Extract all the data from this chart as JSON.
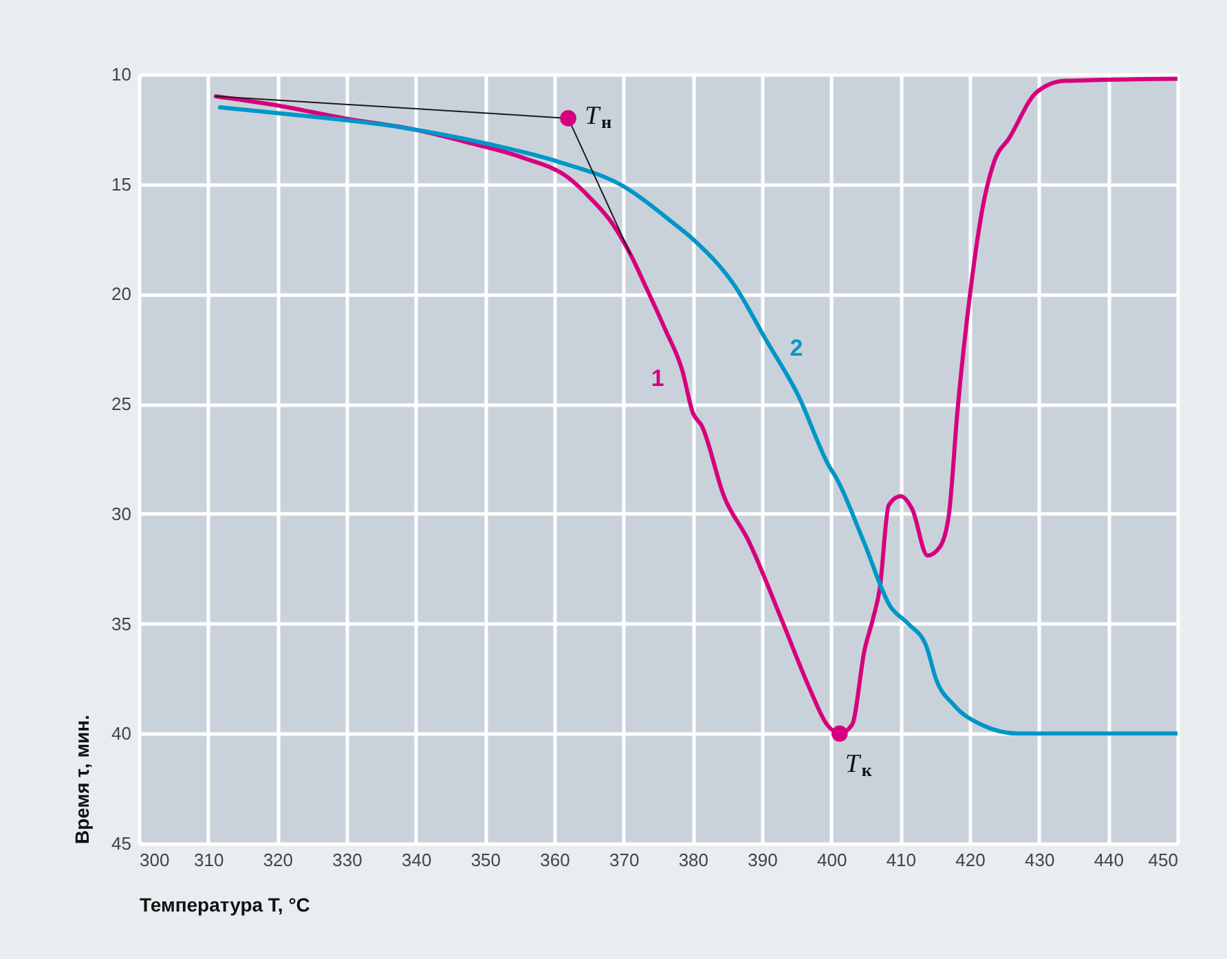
{
  "chart_data": {
    "type": "line",
    "xlabel": "Температура T, °C",
    "ylabel": "Время τ, мин.",
    "xlim": [
      300,
      450
    ],
    "xticks": [
      300,
      310,
      320,
      330,
      340,
      350,
      360,
      370,
      380,
      390,
      400,
      410,
      420,
      430,
      440,
      450
    ],
    "ylim": [
      45,
      10
    ],
    "yticks": [
      10,
      15,
      20,
      25,
      30,
      35,
      40,
      45
    ],
    "grid": true,
    "line_style": "solid",
    "series": [
      {
        "name": "1",
        "color": "#d6007e",
        "x": [
          311.1,
          319.7,
          329.6,
          339.6,
          347.5,
          355.5,
          362,
          365.4,
          368.4,
          371,
          373.4,
          376,
          378.5,
          380,
          381.3,
          384.5,
          388,
          392.8,
          396.8,
          399.4,
          401.2,
          403,
          404.8,
          406,
          407,
          408.3,
          410,
          411.7,
          413.9,
          415.7,
          417,
          418.2,
          420.2,
          421.9,
          423.5,
          425.7,
          429.7,
          433.7,
          450
        ],
        "values": [
          11.0,
          11.4,
          12.0,
          12.5,
          13.1,
          13.8,
          14.7,
          15.7,
          16.8,
          18.2,
          19.8,
          21.6,
          23.5,
          25.4,
          26,
          29.2,
          31.2,
          34.8,
          37.9,
          39.6,
          40.0,
          39.6,
          36.2,
          34.8,
          33.4,
          29.6,
          29.2,
          29.8,
          31.9,
          31.5,
          30,
          25.4,
          19.6,
          16,
          14,
          12.9,
          10.8,
          10.3,
          10.2
        ]
      },
      {
        "name": "2",
        "color": "#0096c8",
        "x": [
          311.7,
          324.3,
          337.6,
          350.9,
          360.8,
          370,
          377.3,
          380,
          386,
          390.6,
          395.2,
          399.8,
          400.6,
          404.6,
          408.5,
          411.1,
          413.7,
          415.1,
          417.7,
          421.7,
          427,
          450
        ],
        "values": [
          11.5,
          11.9,
          12.4,
          13.2,
          14.0,
          15.1,
          16.8,
          17.5,
          19.6,
          22.1,
          24.6,
          27.9,
          28.3,
          31.2,
          34.2,
          35,
          36.0,
          37.5,
          38.7,
          39.6,
          40,
          40
        ]
      },
      {
        "type": "line",
        "color": "#1a1a1a",
        "x": [
          311.1,
          362,
          371
        ],
        "values": [
          11.0,
          12.0,
          18.2
        ]
      },
      {
        "type": "scatter",
        "marker": "circle",
        "color": "#d6007e",
        "x": [
          362,
          401.2
        ],
        "values": [
          12.0,
          40.0
        ]
      }
    ],
    "annotations": [
      {
        "text": "T$_{н}$",
        "x": 362,
        "y": 12.0
      },
      {
        "text": "T$_{к}$",
        "x": 401.2,
        "y": 40.0
      }
    ]
  }
}
